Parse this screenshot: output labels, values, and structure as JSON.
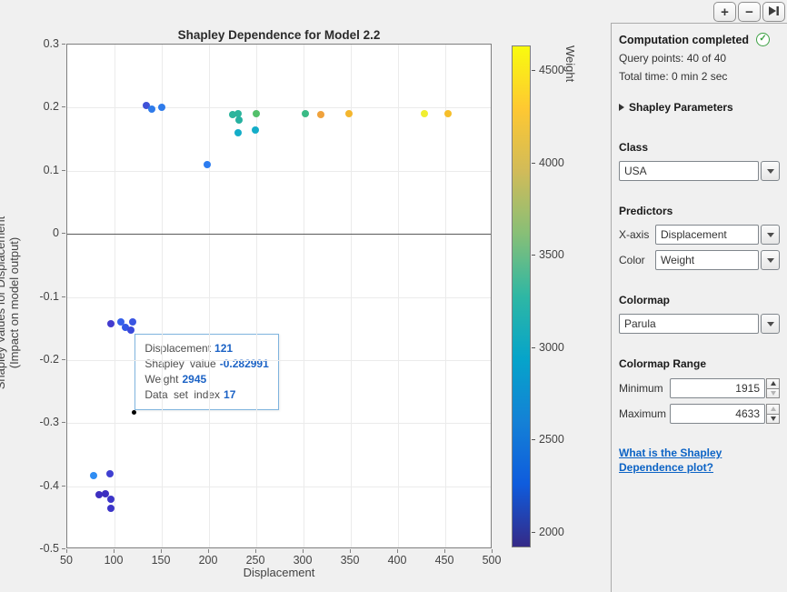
{
  "toolbar": {
    "plus_label": "+",
    "minus_label": "−"
  },
  "chart_data": {
    "type": "scatter",
    "title": "Shapley Dependence for Model 2.2",
    "xlabel": "Displacement",
    "ylabel_line1": "Shapley Values for Displacement",
    "ylabel_line2": "(Impact on model output)",
    "xlim": [
      50,
      500
    ],
    "ylim": [
      -0.5,
      0.3
    ],
    "xticks": [
      50,
      100,
      150,
      200,
      250,
      300,
      350,
      400,
      450,
      500
    ],
    "yticks": [
      -0.5,
      -0.4,
      -0.3,
      -0.2,
      -0.1,
      0,
      0.1,
      0.2,
      0.3
    ],
    "grid": true,
    "zero_line": 0,
    "points": [
      {
        "x": 134,
        "y": 0.203,
        "color": "#3f51d7"
      },
      {
        "x": 139,
        "y": 0.198,
        "color": "#2f7bea"
      },
      {
        "x": 150,
        "y": 0.2,
        "color": "#2f7bea"
      },
      {
        "x": 198,
        "y": 0.11,
        "color": "#2c7cf0"
      },
      {
        "x": 225,
        "y": 0.189,
        "color": "#2bb49c"
      },
      {
        "x": 231,
        "y": 0.19,
        "color": "#2bb49c"
      },
      {
        "x": 232,
        "y": 0.18,
        "color": "#26b1a0"
      },
      {
        "x": 250,
        "y": 0.19,
        "color": "#53c06a"
      },
      {
        "x": 231,
        "y": 0.16,
        "color": "#14adc8"
      },
      {
        "x": 249,
        "y": 0.164,
        "color": "#14adc8"
      },
      {
        "x": 302,
        "y": 0.19,
        "color": "#3aba85"
      },
      {
        "x": 318,
        "y": 0.189,
        "color": "#f0a23c"
      },
      {
        "x": 348,
        "y": 0.19,
        "color": "#f4b62e"
      },
      {
        "x": 428,
        "y": 0.19,
        "color": "#f0ee30"
      },
      {
        "x": 453,
        "y": 0.19,
        "color": "#f6be2a"
      },
      {
        "x": 96,
        "y": -0.142,
        "color": "#433bce"
      },
      {
        "x": 107,
        "y": -0.14,
        "color": "#3560ea"
      },
      {
        "x": 112,
        "y": -0.148,
        "color": "#3156e6"
      },
      {
        "x": 119,
        "y": -0.139,
        "color": "#3a55e2"
      },
      {
        "x": 117,
        "y": -0.152,
        "color": "#3a49da"
      },
      {
        "x": 78,
        "y": -0.383,
        "color": "#2f8df3"
      },
      {
        "x": 95,
        "y": -0.381,
        "color": "#3f3fd1"
      },
      {
        "x": 84,
        "y": -0.413,
        "color": "#3d2fc0"
      },
      {
        "x": 90,
        "y": -0.412,
        "color": "#3d2fc0"
      },
      {
        "x": 96,
        "y": -0.42,
        "color": "#3c35c8"
      },
      {
        "x": 96,
        "y": -0.435,
        "color": "#3c35c8"
      }
    ],
    "query_marker": {
      "x": 121,
      "y": -0.282991,
      "color": "#000000"
    },
    "colorbar": {
      "label": "Weight",
      "min": 1915,
      "max": 4633,
      "ticks": [
        2000,
        2500,
        3000,
        3500,
        4000,
        4500
      ],
      "gradient": [
        {
          "pos": 0.0,
          "color": "#352a87"
        },
        {
          "pos": 0.125,
          "color": "#0f5cdd"
        },
        {
          "pos": 0.25,
          "color": "#1481d6"
        },
        {
          "pos": 0.375,
          "color": "#06a4ca"
        },
        {
          "pos": 0.5,
          "color": "#2eb7a4"
        },
        {
          "pos": 0.625,
          "color": "#87bf77"
        },
        {
          "pos": 0.75,
          "color": "#d1bb59"
        },
        {
          "pos": 0.875,
          "color": "#fec832"
        },
        {
          "pos": 1.0,
          "color": "#f9fb0e"
        }
      ]
    }
  },
  "tooltip": {
    "rows": [
      {
        "label": "Displacement",
        "value": "121"
      },
      {
        "label": "Shapley value",
        "value": "-0.282991"
      },
      {
        "label": "Weight",
        "value": "2945"
      },
      {
        "label": "Data set index",
        "value": "17"
      }
    ]
  },
  "panel": {
    "status_title": "Computation completed",
    "query_points": "Query points: 40 of 40",
    "total_time": "Total time: 0 min 2  sec",
    "expander_label": "Shapley Parameters",
    "class_label": "Class",
    "class_value": "USA",
    "predictors_label": "Predictors",
    "xaxis_label": "X-axis",
    "xaxis_value": "Displacement",
    "color_label": "Color",
    "color_value": "Weight",
    "colormap_label": "Colormap",
    "colormap_value": "Parula",
    "range_label": "Colormap Range",
    "min_label": "Minimum",
    "min_value": "1915",
    "max_label": "Maximum",
    "max_value": "4633",
    "link_text": "What is the Shapley Dependence plot?"
  }
}
